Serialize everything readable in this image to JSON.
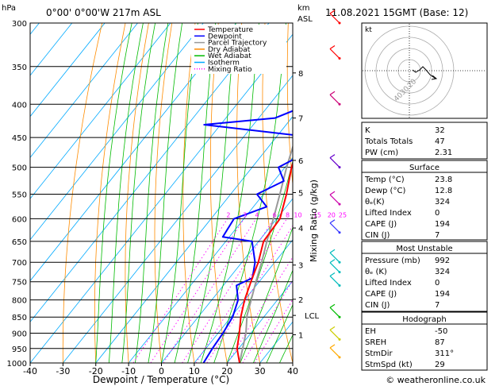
{
  "header": {
    "hpa_label": "hPa",
    "location": "0°00' 0°00'W 217m ASL",
    "km_label": "km",
    "asl_label": "ASL",
    "datetime": "11.08.2021 15GMT (Base: 12)"
  },
  "legend": [
    {
      "label": "Temperature",
      "color": "#ff0000",
      "dash": "solid"
    },
    {
      "label": "Dewpoint",
      "color": "#0000ff",
      "dash": "solid"
    },
    {
      "label": "Parcel Trajectory",
      "color": "#999999",
      "dash": "solid"
    },
    {
      "label": "Dry Adiabat",
      "color": "#ff8c00",
      "dash": "solid"
    },
    {
      "label": "Wet Adiabat",
      "color": "#00bb00",
      "dash": "solid"
    },
    {
      "label": "Isotherm",
      "color": "#00aaff",
      "dash": "solid"
    },
    {
      "label": "Mixing Ratio",
      "color": "#ff00ff",
      "dash": "dotted"
    }
  ],
  "chart_data": {
    "type": "line",
    "xlabel": "Dewpoint / Temperature (°C)",
    "ylabel": "Mixing Ratio (g/kg)",
    "xlim": [
      -40,
      40
    ],
    "pressure_levels": [
      300,
      350,
      400,
      450,
      500,
      550,
      600,
      650,
      700,
      750,
      800,
      850,
      900,
      950,
      1000
    ],
    "x_ticks": [
      -40,
      -30,
      -20,
      -10,
      0,
      10,
      20,
      30,
      40
    ],
    "km_ticks": [
      {
        "km": "8",
        "p": 358
      },
      {
        "km": "7",
        "p": 420
      },
      {
        "km": "6",
        "p": 488
      },
      {
        "km": "5",
        "p": 547
      },
      {
        "km": "4",
        "p": 620
      },
      {
        "km": "3",
        "p": 707
      },
      {
        "km": "2",
        "p": 798
      },
      {
        "km": "1",
        "p": 905
      }
    ],
    "lcl": {
      "label": "LCL",
      "p": 845
    },
    "mixing_ratio_labels": [
      "2",
      "3",
      "4",
      "6",
      "8",
      "10",
      "15",
      "20",
      "25"
    ],
    "series": [
      {
        "name": "Temperature",
        "points": [
          [
            1000,
            23.8
          ],
          [
            950,
            19.5
          ],
          [
            900,
            16.5
          ],
          [
            850,
            13
          ],
          [
            800,
            10
          ],
          [
            750,
            7.5
          ],
          [
            700,
            5
          ],
          [
            650,
            1.5
          ],
          [
            600,
            1
          ],
          [
            550,
            -3
          ],
          [
            500,
            -8
          ],
          [
            450,
            -12
          ],
          [
            400,
            -17
          ],
          [
            350,
            -24
          ],
          [
            300,
            -31
          ]
        ]
      },
      {
        "name": "Dewpoint",
        "points": [
          [
            1000,
            12.8
          ],
          [
            950,
            12
          ],
          [
            900,
            11.5
          ],
          [
            850,
            10.5
          ],
          [
            800,
            8
          ],
          [
            760,
            4
          ],
          [
            740,
            7
          ],
          [
            700,
            4
          ],
          [
            650,
            -2
          ],
          [
            640,
            -12
          ],
          [
            600,
            -13
          ],
          [
            575,
            -6
          ],
          [
            550,
            -12
          ],
          [
            525,
            -7
          ],
          [
            500,
            -12
          ],
          [
            470,
            -6
          ],
          [
            450,
            -8
          ],
          [
            430,
            -45
          ],
          [
            420,
            -25
          ],
          [
            400,
            -18
          ],
          [
            380,
            -12
          ],
          [
            370,
            -6
          ],
          [
            350,
            -8
          ],
          [
            330,
            -8
          ],
          [
            300,
            -9
          ]
        ]
      },
      {
        "name": "Parcel Trajectory",
        "points": [
          [
            1000,
            23.8
          ],
          [
            900,
            18.5
          ],
          [
            845,
            14.5
          ],
          [
            800,
            12
          ],
          [
            750,
            9
          ],
          [
            700,
            6
          ],
          [
            650,
            2.5
          ],
          [
            600,
            -1
          ],
          [
            550,
            -5
          ],
          [
            500,
            -9.5
          ],
          [
            450,
            -14
          ],
          [
            400,
            -20
          ],
          [
            350,
            -26
          ],
          [
            300,
            -33
          ]
        ]
      }
    ]
  },
  "hodograph": {
    "unit": "kt",
    "rings": [
      "40",
      "30",
      "20"
    ]
  },
  "indices": [
    {
      "label": "K",
      "value": "32"
    },
    {
      "label": "Totals Totals",
      "value": "47"
    },
    {
      "label": "PW (cm)",
      "value": "2.31"
    }
  ],
  "surface": {
    "title": "Surface",
    "rows": [
      {
        "label": "Temp (°C)",
        "value": "23.8"
      },
      {
        "label": "Dewp (°C)",
        "value": "12.8"
      },
      {
        "label": "θₑ(K)",
        "value": "324"
      },
      {
        "label": "Lifted Index",
        "value": "0"
      },
      {
        "label": "CAPE (J)",
        "value": "194"
      },
      {
        "label": "CIN (J)",
        "value": "7"
      }
    ]
  },
  "most_unstable": {
    "title": "Most Unstable",
    "rows": [
      {
        "label": "Pressure (mb)",
        "value": "992"
      },
      {
        "label": "θₑ (K)",
        "value": "324"
      },
      {
        "label": "Lifted Index",
        "value": "0"
      },
      {
        "label": "CAPE (J)",
        "value": "194"
      },
      {
        "label": "CIN (J)",
        "value": "7"
      }
    ]
  },
  "hodo_table": {
    "title": "Hodograph",
    "rows": [
      {
        "label": "EH",
        "value": "-50"
      },
      {
        "label": "SREH",
        "value": "87"
      },
      {
        "label": "StmDir",
        "value": "311°"
      },
      {
        "label": "StmSpd (kt)",
        "value": "29"
      }
    ]
  },
  "footer": {
    "copyright": "© weatheronline.co.uk"
  },
  "colors": {
    "temperature": "#ff0000",
    "dewpoint": "#0000ff",
    "parcel": "#999999",
    "dry_adiabat": "#ff8c00",
    "wet_adiabat": "#00bb00",
    "isotherm": "#00aaff",
    "mixing_ratio": "#ff00ff"
  }
}
